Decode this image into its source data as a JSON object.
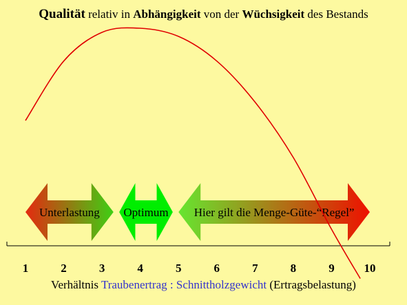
{
  "chart_data": {
    "type": "line",
    "title": {
      "w1": "Qualität",
      "w2": "relativ in",
      "w3": "Abhängigkeit",
      "w4": "von der",
      "w5": "Wüchsigkeit",
      "w6": "des Bestands"
    },
    "xlabel": {
      "part1": "Verhältnis",
      "part2": "Traubenertrag",
      "part3": ":",
      "part4": "Schnittholzgewicht",
      "part5": "(Ertragsbelastung)"
    },
    "ylabel": "",
    "x_ticks": [
      "1",
      "2",
      "3",
      "4",
      "5",
      "6",
      "7",
      "8",
      "9",
      "10"
    ],
    "xlim": [
      1,
      10
    ],
    "grid": false,
    "series": [
      {
        "color": "#e00000",
        "x": [
          1.0,
          2.0,
          3.0,
          4.0,
          5.0,
          6.0,
          7.0,
          8.0,
          9.0,
          9.75
        ],
        "y": [
          0.55,
          0.84,
          0.98,
          1.0,
          0.96,
          0.84,
          0.64,
          0.37,
          0.02,
          -0.22
        ]
      }
    ],
    "ranges": [
      {
        "label": "Unterlastung",
        "from": 1.0,
        "to": 3.3,
        "color_start": "#e42a10",
        "color_end": "#3ecf14"
      },
      {
        "label": "Optimum",
        "from": 3.45,
        "to": 4.85,
        "color_start": "#00ee00",
        "color_end": "#00ee00"
      },
      {
        "label": "Hier gilt die Menge-Güte-“Regel”",
        "from": 5.0,
        "to": 10.0,
        "color_start": "#66e630",
        "color_end": "#ee1100"
      }
    ]
  }
}
